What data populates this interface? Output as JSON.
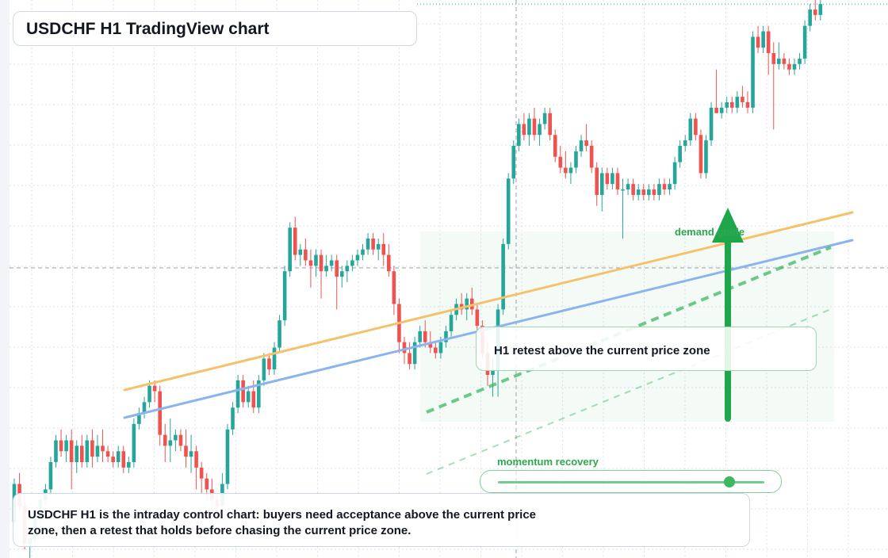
{
  "header": {
    "title": "USDCHF H1 TradingView chart"
  },
  "annotations": {
    "zone_label": "demand guide",
    "setup_text": "H1 retest above the current price zone",
    "momentum_label": "momentum recovery",
    "momentum_level": 0.87,
    "note": "USDCHF H1 is the intraday control chart: buyers need acceptance above the current price zone, then a retest that holds before chasing the current price zone."
  },
  "colors": {
    "bull": "#26a69a",
    "bear": "#ef5350",
    "trend_upper": "#f5c26b",
    "trend_lower": "#8ab4f0",
    "guide": "#3cb861",
    "arrow": "#1fa64a",
    "grid": "#e0e3eb",
    "crosshair": "#9aa1ad"
  },
  "chart_data": {
    "type": "candlestick",
    "title": "USDCHF H1 TradingView chart",
    "xlabel": "",
    "ylabel": "",
    "grid": true,
    "note": "price values in relative chart units (0 = bottom of visible range, 100 = top)",
    "ylim": [
      0,
      100
    ],
    "series": [
      {
        "values": [
          {
            "o": 6,
            "h": 14,
            "l": 5,
            "c": 13
          },
          {
            "o": 13,
            "h": 15,
            "l": 8,
            "c": 9
          },
          {
            "o": 9,
            "h": 11,
            "l": 1,
            "c": 2
          },
          {
            "o": 2,
            "h": 5,
            "l": -1,
            "c": 3
          },
          {
            "o": 3,
            "h": 8,
            "l": 2,
            "c": 7
          },
          {
            "o": 7,
            "h": 11,
            "l": 6,
            "c": 10
          },
          {
            "o": 10,
            "h": 13,
            "l": 9,
            "c": 12
          },
          {
            "o": 12,
            "h": 18,
            "l": 11,
            "c": 17
          },
          {
            "o": 17,
            "h": 22,
            "l": 16,
            "c": 21
          },
          {
            "o": 21,
            "h": 23,
            "l": 18,
            "c": 19
          },
          {
            "o": 19,
            "h": 22,
            "l": 17,
            "c": 21
          },
          {
            "o": 21,
            "h": 23,
            "l": 12,
            "c": 17
          },
          {
            "o": 17,
            "h": 21,
            "l": 15,
            "c": 20
          },
          {
            "o": 20,
            "h": 22,
            "l": 16,
            "c": 17
          },
          {
            "o": 17,
            "h": 22,
            "l": 16,
            "c": 21
          },
          {
            "o": 21,
            "h": 23,
            "l": 16,
            "c": 18
          },
          {
            "o": 18,
            "h": 22,
            "l": 17,
            "c": 20
          },
          {
            "o": 20,
            "h": 23,
            "l": 17,
            "c": 19
          },
          {
            "o": 19,
            "h": 20,
            "l": 17,
            "c": 18
          },
          {
            "o": 18,
            "h": 19,
            "l": 16,
            "c": 17
          },
          {
            "o": 17,
            "h": 20,
            "l": 16,
            "c": 19
          },
          {
            "o": 19,
            "h": 20,
            "l": 15,
            "c": 16
          },
          {
            "o": 16,
            "h": 18,
            "l": 15,
            "c": 17
          },
          {
            "o": 17,
            "h": 25,
            "l": 16,
            "c": 24
          },
          {
            "o": 24,
            "h": 27,
            "l": 23,
            "c": 26
          },
          {
            "o": 26,
            "h": 29,
            "l": 25,
            "c": 28
          },
          {
            "o": 28,
            "h": 32,
            "l": 27,
            "c": 31
          },
          {
            "o": 31,
            "h": 32,
            "l": 28,
            "c": 30
          },
          {
            "o": 30,
            "h": 31,
            "l": 20,
            "c": 22
          },
          {
            "o": 22,
            "h": 24,
            "l": 17,
            "c": 20
          },
          {
            "o": 20,
            "h": 25,
            "l": 17,
            "c": 21
          },
          {
            "o": 21,
            "h": 23,
            "l": 19,
            "c": 22
          },
          {
            "o": 22,
            "h": 23,
            "l": 19,
            "c": 20
          },
          {
            "o": 20,
            "h": 23,
            "l": 16,
            "c": 18
          },
          {
            "o": 18,
            "h": 22,
            "l": 15,
            "c": 19
          },
          {
            "o": 19,
            "h": 20,
            "l": 12,
            "c": 16
          },
          {
            "o": 16,
            "h": 17,
            "l": 11,
            "c": 14
          },
          {
            "o": 14,
            "h": 15,
            "l": 10,
            "c": 12
          },
          {
            "o": 12,
            "h": 14,
            "l": 7,
            "c": 10
          },
          {
            "o": 10,
            "h": 11,
            "l": 6,
            "c": 9
          },
          {
            "o": 9,
            "h": 15,
            "l": 8,
            "c": 13
          },
          {
            "o": 13,
            "h": 24,
            "l": 12,
            "c": 23
          },
          {
            "o": 23,
            "h": 28,
            "l": 22,
            "c": 27
          },
          {
            "o": 27,
            "h": 33,
            "l": 26,
            "c": 32
          },
          {
            "o": 32,
            "h": 33,
            "l": 27,
            "c": 28
          },
          {
            "o": 28,
            "h": 31,
            "l": 27,
            "c": 30
          },
          {
            "o": 30,
            "h": 32,
            "l": 26,
            "c": 27
          },
          {
            "o": 27,
            "h": 33,
            "l": 26,
            "c": 32
          },
          {
            "o": 32,
            "h": 37,
            "l": 31,
            "c": 36
          },
          {
            "o": 36,
            "h": 37,
            "l": 33,
            "c": 34
          },
          {
            "o": 34,
            "h": 39,
            "l": 33,
            "c": 38
          },
          {
            "o": 38,
            "h": 44,
            "l": 37,
            "c": 43
          },
          {
            "o": 43,
            "h": 53,
            "l": 42,
            "c": 52
          },
          {
            "o": 52,
            "h": 61,
            "l": 51,
            "c": 60
          },
          {
            "o": 60,
            "h": 62,
            "l": 54,
            "c": 55
          },
          {
            "o": 55,
            "h": 57,
            "l": 53,
            "c": 56
          },
          {
            "o": 56,
            "h": 58,
            "l": 53,
            "c": 54
          },
          {
            "o": 54,
            "h": 56,
            "l": 49,
            "c": 53
          },
          {
            "o": 53,
            "h": 56,
            "l": 51,
            "c": 55
          },
          {
            "o": 55,
            "h": 56,
            "l": 47,
            "c": 52
          },
          {
            "o": 52,
            "h": 55,
            "l": 51,
            "c": 53
          },
          {
            "o": 53,
            "h": 55,
            "l": 52,
            "c": 54
          },
          {
            "o": 54,
            "h": 55,
            "l": 45,
            "c": 51
          },
          {
            "o": 51,
            "h": 53,
            "l": 49,
            "c": 52
          },
          {
            "o": 52,
            "h": 54,
            "l": 50,
            "c": 53
          },
          {
            "o": 53,
            "h": 55,
            "l": 52,
            "c": 54
          },
          {
            "o": 54,
            "h": 56,
            "l": 53,
            "c": 55
          },
          {
            "o": 55,
            "h": 57,
            "l": 54,
            "c": 56
          },
          {
            "o": 56,
            "h": 59,
            "l": 55,
            "c": 58
          },
          {
            "o": 58,
            "h": 59,
            "l": 55,
            "c": 56
          },
          {
            "o": 56,
            "h": 58,
            "l": 54,
            "c": 57
          },
          {
            "o": 57,
            "h": 59,
            "l": 53,
            "c": 55
          },
          {
            "o": 55,
            "h": 57,
            "l": 51,
            "c": 52
          },
          {
            "o": 52,
            "h": 53,
            "l": 44,
            "c": 46
          },
          {
            "o": 46,
            "h": 47,
            "l": 37,
            "c": 39
          },
          {
            "o": 39,
            "h": 40,
            "l": 35,
            "c": 37
          },
          {
            "o": 37,
            "h": 39,
            "l": 34,
            "c": 35
          },
          {
            "o": 35,
            "h": 40,
            "l": 34,
            "c": 39
          },
          {
            "o": 39,
            "h": 42,
            "l": 38,
            "c": 41
          },
          {
            "o": 41,
            "h": 43,
            "l": 38,
            "c": 39
          },
          {
            "o": 39,
            "h": 41,
            "l": 37,
            "c": 38
          },
          {
            "o": 38,
            "h": 39,
            "l": 36,
            "c": 37
          },
          {
            "o": 37,
            "h": 40,
            "l": 36,
            "c": 39
          },
          {
            "o": 39,
            "h": 42,
            "l": 38,
            "c": 41
          },
          {
            "o": 41,
            "h": 45,
            "l": 40,
            "c": 44
          },
          {
            "o": 44,
            "h": 47,
            "l": 43,
            "c": 46
          },
          {
            "o": 46,
            "h": 48,
            "l": 44,
            "c": 45
          },
          {
            "o": 45,
            "h": 48,
            "l": 43,
            "c": 47
          },
          {
            "o": 47,
            "h": 49,
            "l": 44,
            "c": 45
          },
          {
            "o": 45,
            "h": 46,
            "l": 41,
            "c": 42
          },
          {
            "o": 42,
            "h": 43,
            "l": 36,
            "c": 37
          },
          {
            "o": 37,
            "h": 39,
            "l": 31,
            "c": 33
          },
          {
            "o": 33,
            "h": 36,
            "l": 29,
            "c": 34
          },
          {
            "o": 34,
            "h": 46,
            "l": 29,
            "c": 45
          },
          {
            "o": 45,
            "h": 58,
            "l": 44,
            "c": 57
          },
          {
            "o": 57,
            "h": 70,
            "l": 56,
            "c": 69
          },
          {
            "o": 69,
            "h": 76,
            "l": 68,
            "c": 75
          },
          {
            "o": 75,
            "h": 80,
            "l": 74,
            "c": 79
          },
          {
            "o": 79,
            "h": 81,
            "l": 76,
            "c": 77
          },
          {
            "o": 77,
            "h": 81,
            "l": 75,
            "c": 80
          },
          {
            "o": 80,
            "h": 82,
            "l": 76,
            "c": 77
          },
          {
            "o": 77,
            "h": 80,
            "l": 75,
            "c": 79
          },
          {
            "o": 79,
            "h": 82,
            "l": 78,
            "c": 81
          },
          {
            "o": 81,
            "h": 82,
            "l": 76,
            "c": 77
          },
          {
            "o": 77,
            "h": 78,
            "l": 72,
            "c": 73
          },
          {
            "o": 73,
            "h": 75,
            "l": 70,
            "c": 71
          },
          {
            "o": 71,
            "h": 74,
            "l": 69,
            "c": 70
          },
          {
            "o": 70,
            "h": 72,
            "l": 68,
            "c": 71
          },
          {
            "o": 71,
            "h": 75,
            "l": 70,
            "c": 74
          },
          {
            "o": 74,
            "h": 77,
            "l": 73,
            "c": 76
          },
          {
            "o": 76,
            "h": 79,
            "l": 74,
            "c": 75
          },
          {
            "o": 75,
            "h": 76,
            "l": 70,
            "c": 71
          },
          {
            "o": 71,
            "h": 72,
            "l": 64,
            "c": 66
          },
          {
            "o": 66,
            "h": 71,
            "l": 63,
            "c": 70
          },
          {
            "o": 70,
            "h": 71,
            "l": 67,
            "c": 68
          },
          {
            "o": 68,
            "h": 71,
            "l": 67,
            "c": 70
          },
          {
            "o": 70,
            "h": 71,
            "l": 66,
            "c": 67
          },
          {
            "o": 67,
            "h": 69,
            "l": 58,
            "c": 67
          },
          {
            "o": 67,
            "h": 69,
            "l": 66,
            "c": 68
          },
          {
            "o": 68,
            "h": 69,
            "l": 65,
            "c": 66
          },
          {
            "o": 66,
            "h": 68,
            "l": 65,
            "c": 67
          },
          {
            "o": 67,
            "h": 68,
            "l": 65,
            "c": 66
          },
          {
            "o": 66,
            "h": 68,
            "l": 65,
            "c": 67
          },
          {
            "o": 67,
            "h": 68,
            "l": 65,
            "c": 66
          },
          {
            "o": 66,
            "h": 69,
            "l": 65,
            "c": 68
          },
          {
            "o": 68,
            "h": 69,
            "l": 66,
            "c": 67
          },
          {
            "o": 67,
            "h": 69,
            "l": 66,
            "c": 68
          },
          {
            "o": 68,
            "h": 73,
            "l": 67,
            "c": 72
          },
          {
            "o": 72,
            "h": 76,
            "l": 71,
            "c": 75
          },
          {
            "o": 75,
            "h": 77,
            "l": 74,
            "c": 76
          },
          {
            "o": 76,
            "h": 81,
            "l": 75,
            "c": 80
          },
          {
            "o": 80,
            "h": 81,
            "l": 76,
            "c": 77
          },
          {
            "o": 77,
            "h": 78,
            "l": 69,
            "c": 70
          },
          {
            "o": 70,
            "h": 77,
            "l": 69,
            "c": 76
          },
          {
            "o": 76,
            "h": 83,
            "l": 75,
            "c": 82
          },
          {
            "o": 82,
            "h": 89,
            "l": 81,
            "c": 81
          },
          {
            "o": 81,
            "h": 83,
            "l": 80,
            "c": 82
          },
          {
            "o": 82,
            "h": 84,
            "l": 81,
            "c": 83
          },
          {
            "o": 83,
            "h": 84,
            "l": 81,
            "c": 82
          },
          {
            "o": 82,
            "h": 85,
            "l": 81,
            "c": 84
          },
          {
            "o": 84,
            "h": 86,
            "l": 82,
            "c": 83
          },
          {
            "o": 83,
            "h": 85,
            "l": 81,
            "c": 82
          },
          {
            "o": 82,
            "h": 96,
            "l": 81,
            "c": 95
          },
          {
            "o": 95,
            "h": 97,
            "l": 92,
            "c": 93
          },
          {
            "o": 93,
            "h": 97,
            "l": 92,
            "c": 96
          },
          {
            "o": 96,
            "h": 97,
            "l": 88,
            "c": 92
          },
          {
            "o": 92,
            "h": 94,
            "l": 78,
            "c": 90
          },
          {
            "o": 90,
            "h": 94,
            "l": 89,
            "c": 91
          },
          {
            "o": 91,
            "h": 92,
            "l": 89,
            "c": 90
          },
          {
            "o": 90,
            "h": 91,
            "l": 88,
            "c": 89
          },
          {
            "o": 89,
            "h": 91,
            "l": 88,
            "c": 90
          },
          {
            "o": 90,
            "h": 92,
            "l": 89,
            "c": 91
          },
          {
            "o": 91,
            "h": 98,
            "l": 90,
            "c": 97
          },
          {
            "o": 97,
            "h": 101,
            "l": 96,
            "c": 100
          },
          {
            "o": 100,
            "h": 102,
            "l": 98,
            "c": 99
          },
          {
            "o": 99,
            "h": 102,
            "l": 98,
            "c": 101
          }
        ]
      }
    ]
  }
}
